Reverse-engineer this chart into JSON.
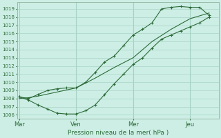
{
  "bg_color": "#cceee4",
  "grid_color": "#aad4c8",
  "line_color": "#2d6b3a",
  "marker_color": "#2d6b3a",
  "xlabel": "Pression niveau de la mer( hPa )",
  "ylim": [
    1005.5,
    1019.8
  ],
  "yticks": [
    1006,
    1007,
    1008,
    1009,
    1010,
    1011,
    1012,
    1013,
    1014,
    1015,
    1016,
    1017,
    1018,
    1019
  ],
  "xtick_labels": [
    "Mar",
    "Ven",
    "Mer",
    "Jeu"
  ],
  "xtick_positions": [
    0,
    3,
    6,
    9
  ],
  "xlim": [
    -0.1,
    10.5
  ],
  "series1_x": [
    0,
    0.5,
    1,
    1.5,
    2,
    2.5,
    3,
    3.5,
    4,
    4.5,
    5,
    5.5,
    6,
    6.5,
    7,
    7.5,
    8,
    8.5,
    9,
    9.5,
    10
  ],
  "series1_y": [
    1008.2,
    1007.8,
    1007.2,
    1006.7,
    1006.2,
    1006.1,
    1006.1,
    1006.5,
    1007.2,
    1008.5,
    1009.8,
    1011.0,
    1012.2,
    1013.0,
    1014.2,
    1015.3,
    1015.8,
    1016.3,
    1016.8,
    1017.3,
    1018.0
  ],
  "series2_x": [
    0,
    0.5,
    1,
    1.5,
    2,
    2.5,
    3,
    3.5,
    4,
    4.5,
    5,
    5.5,
    6,
    6.5,
    7,
    7.5,
    8,
    8.5,
    9,
    9.5,
    10
  ],
  "series2_y": [
    1008.2,
    1008.0,
    1008.5,
    1009.0,
    1009.2,
    1009.3,
    1009.3,
    1010.0,
    1011.2,
    1012.5,
    1013.2,
    1014.5,
    1015.8,
    1016.5,
    1017.3,
    1019.0,
    1019.2,
    1019.3,
    1019.2,
    1019.2,
    1018.2
  ],
  "series3_x": [
    0,
    0.5,
    1,
    2,
    3,
    4,
    5,
    6,
    7,
    8,
    9,
    10
  ],
  "series3_y": [
    1008.0,
    1008.1,
    1008.3,
    1008.8,
    1009.3,
    1010.5,
    1011.8,
    1013.0,
    1015.0,
    1016.5,
    1017.8,
    1018.5
  ],
  "vline_color": "#99ccbb",
  "vline_positions": [
    0,
    3,
    6,
    9
  ],
  "spine_color": "#99bbaa",
  "ytick_fontsize": 5.0,
  "xtick_fontsize": 6.0,
  "xlabel_fontsize": 6.5
}
